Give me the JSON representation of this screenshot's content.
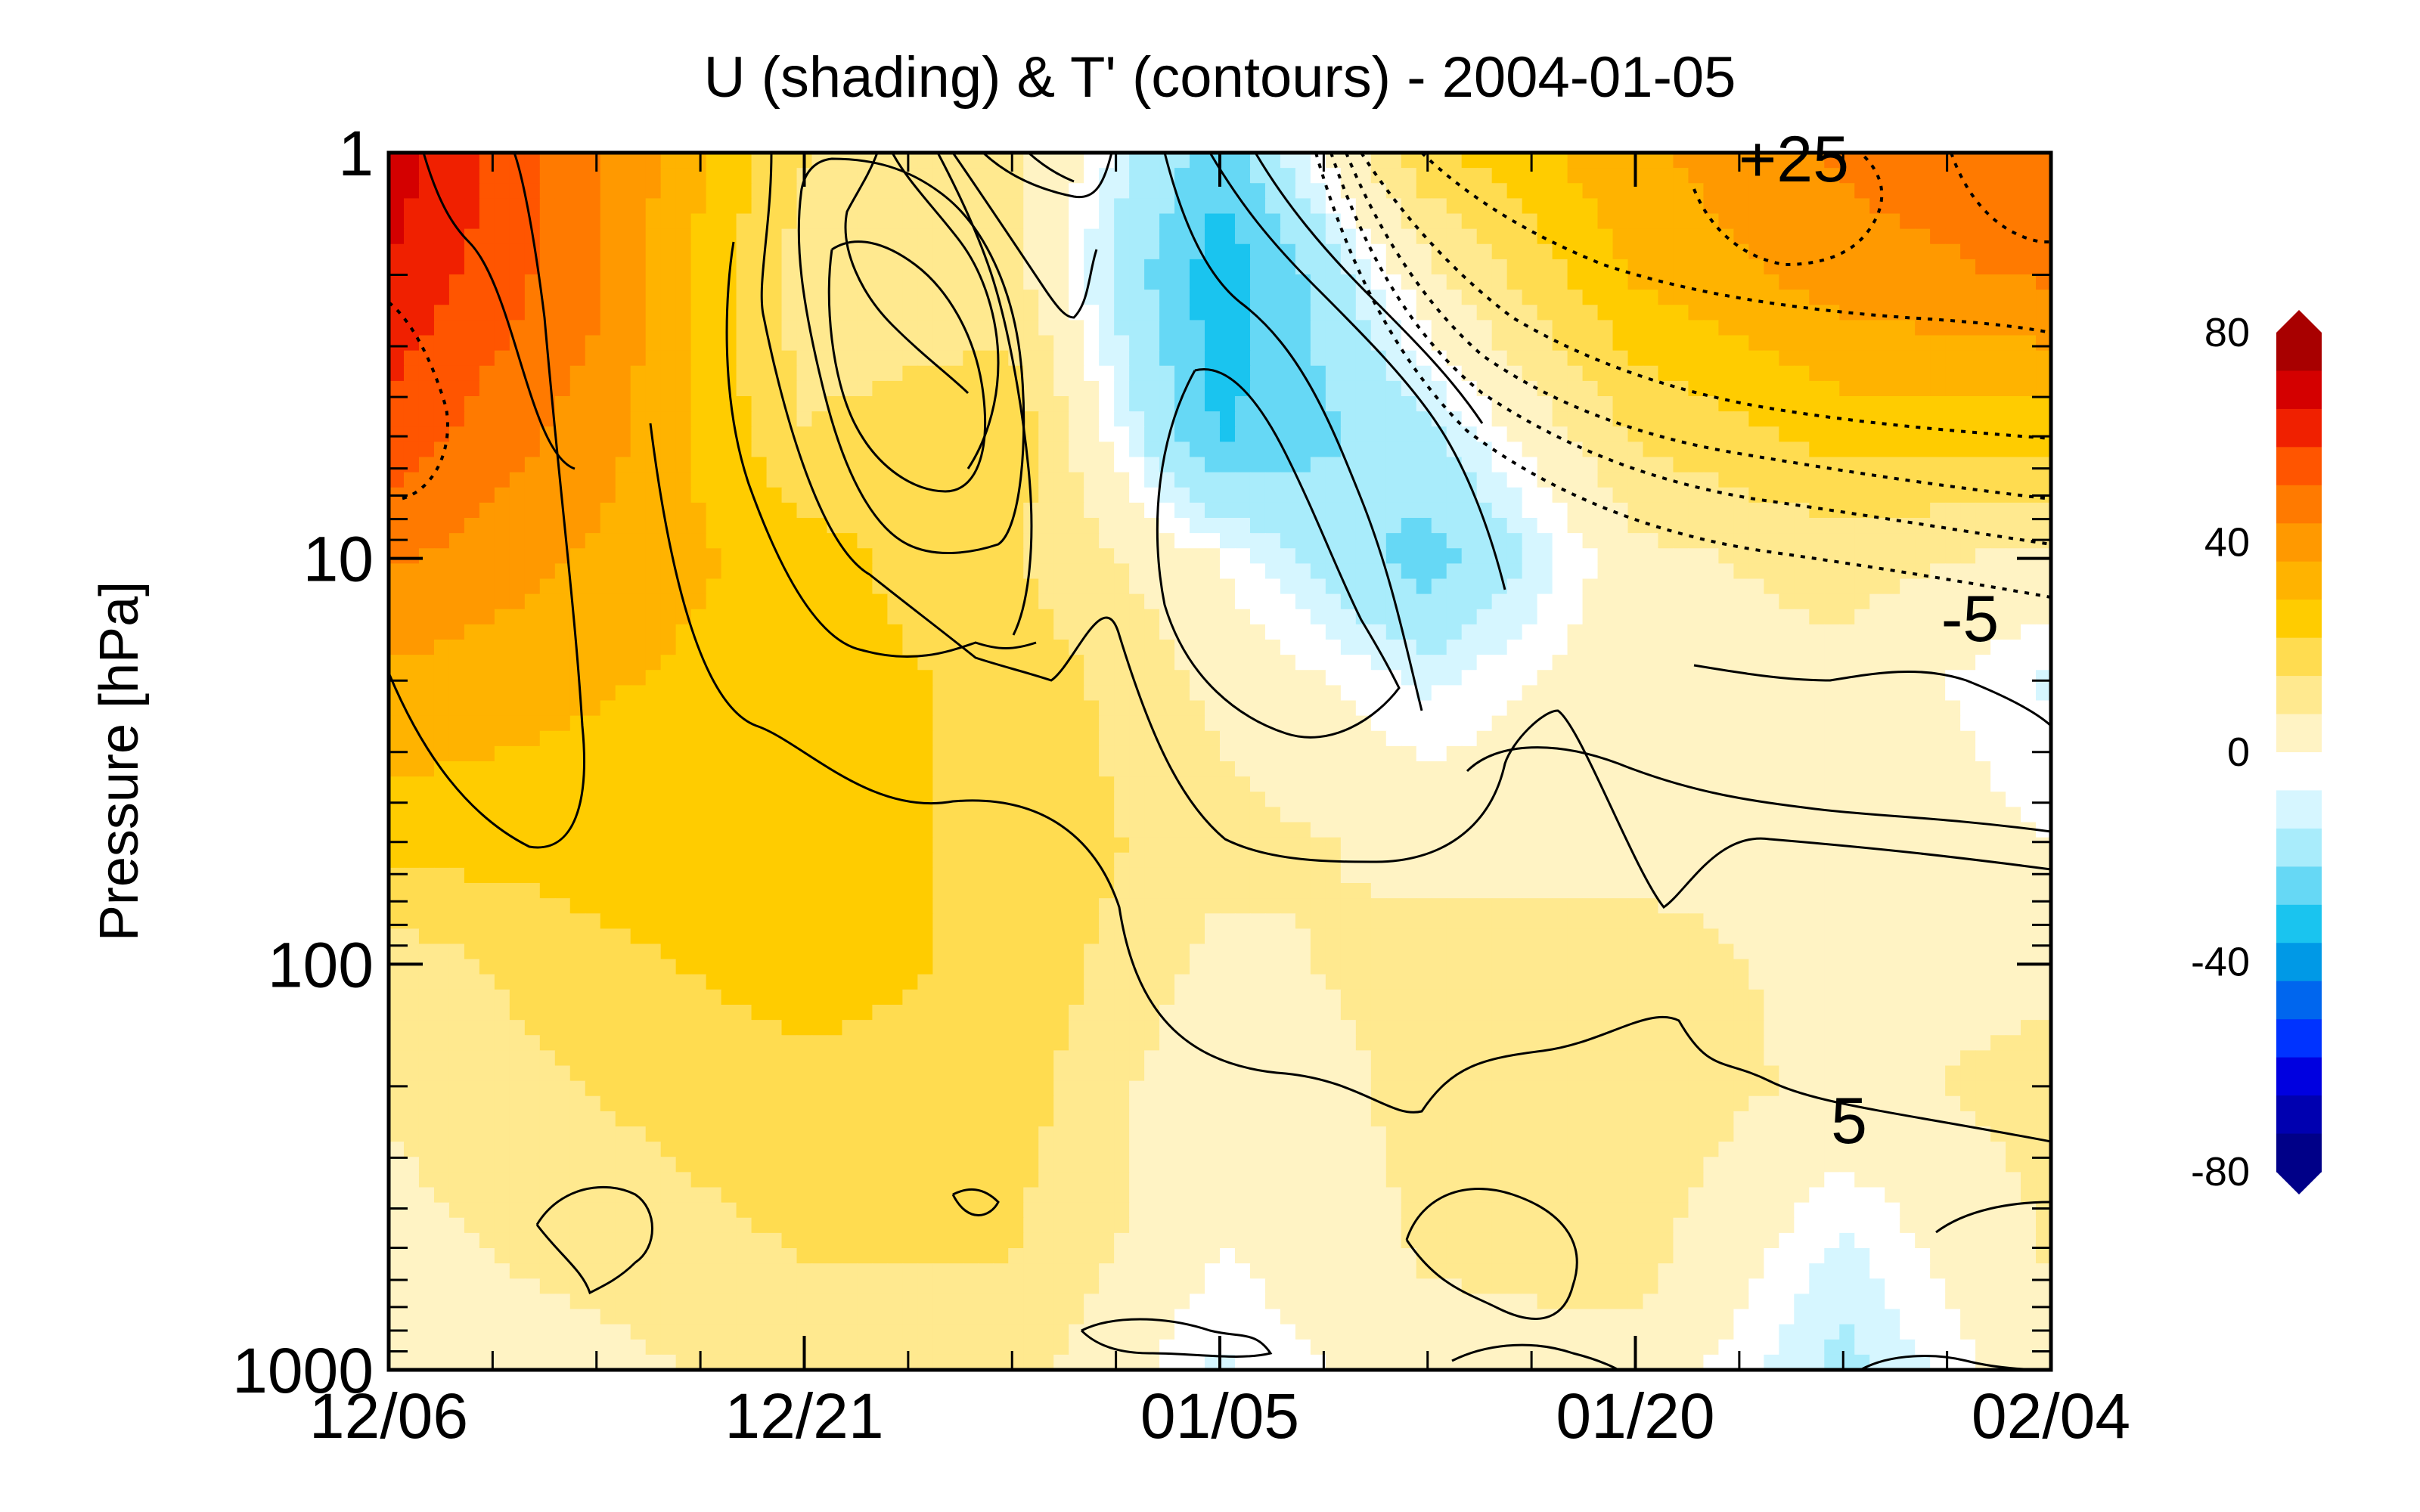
{
  "chart_data": {
    "type": "heatmap",
    "title": "U (shading) & T' (contours) - 2004-01-05",
    "xlabel": "",
    "ylabel": "Pressure [hPa]",
    "x_tick_labels": [
      "12/06",
      "12/21",
      "01/05",
      "01/20",
      "02/04"
    ],
    "x_range": [
      "12/06",
      "02/04"
    ],
    "y_scale": "log",
    "y_range": [
      1000,
      1
    ],
    "y_tick_labels": [
      "1",
      "10",
      "100",
      "1000"
    ],
    "colorbar": {
      "range": [
        -80,
        80
      ],
      "tick_labels": [
        "80",
        "40",
        "0",
        "-40",
        "-80"
      ],
      "extend": "both",
      "colors_positive": [
        "#fff3c4",
        "#ffe98f",
        "#ffdc50",
        "#ffcc00",
        "#ffb300",
        "#ff9900",
        "#ff7a00",
        "#ff5500",
        "#f02000",
        "#d40000",
        "#a80000"
      ],
      "colors_negative": [
        "#d6f6ff",
        "#a9ecfb",
        "#66d8f5",
        "#1ac4ef",
        "#0099e6",
        "#0066ee",
        "#0033ff",
        "#0000e0",
        "#0000b0",
        "#000088"
      ]
    },
    "contour_labels": [
      "+25",
      "-5",
      "5"
    ],
    "rows_pressure_hPa": [
      1,
      2,
      5,
      10,
      20,
      50,
      100,
      200,
      500,
      1000
    ],
    "columns_time": [
      "12/06",
      "12/13",
      "12/21",
      "12/28",
      "01/05",
      "01/12",
      "01/20",
      "01/27",
      "02/04"
    ],
    "u_wind_field": [
      [
        70,
        45,
        15,
        10,
        -20,
        20,
        35,
        45,
        50
      ],
      [
        65,
        45,
        10,
        10,
        -30,
        5,
        30,
        40,
        45
      ],
      [
        55,
        40,
        15,
        20,
        -25,
        -10,
        15,
        25,
        25
      ],
      [
        45,
        35,
        25,
        15,
        0,
        -20,
        5,
        10,
        5
      ],
      [
        35,
        30,
        25,
        20,
        5,
        -5,
        5,
        5,
        -5
      ],
      [
        25,
        25,
        25,
        20,
        10,
        5,
        5,
        5,
        0
      ],
      [
        10,
        20,
        25,
        20,
        5,
        10,
        10,
        5,
        5
      ],
      [
        8,
        15,
        20,
        18,
        0,
        10,
        12,
        5,
        10
      ],
      [
        5,
        10,
        15,
        15,
        0,
        8,
        10,
        -5,
        8
      ],
      [
        3,
        5,
        10,
        10,
        -5,
        5,
        5,
        -10,
        5
      ]
    ]
  }
}
